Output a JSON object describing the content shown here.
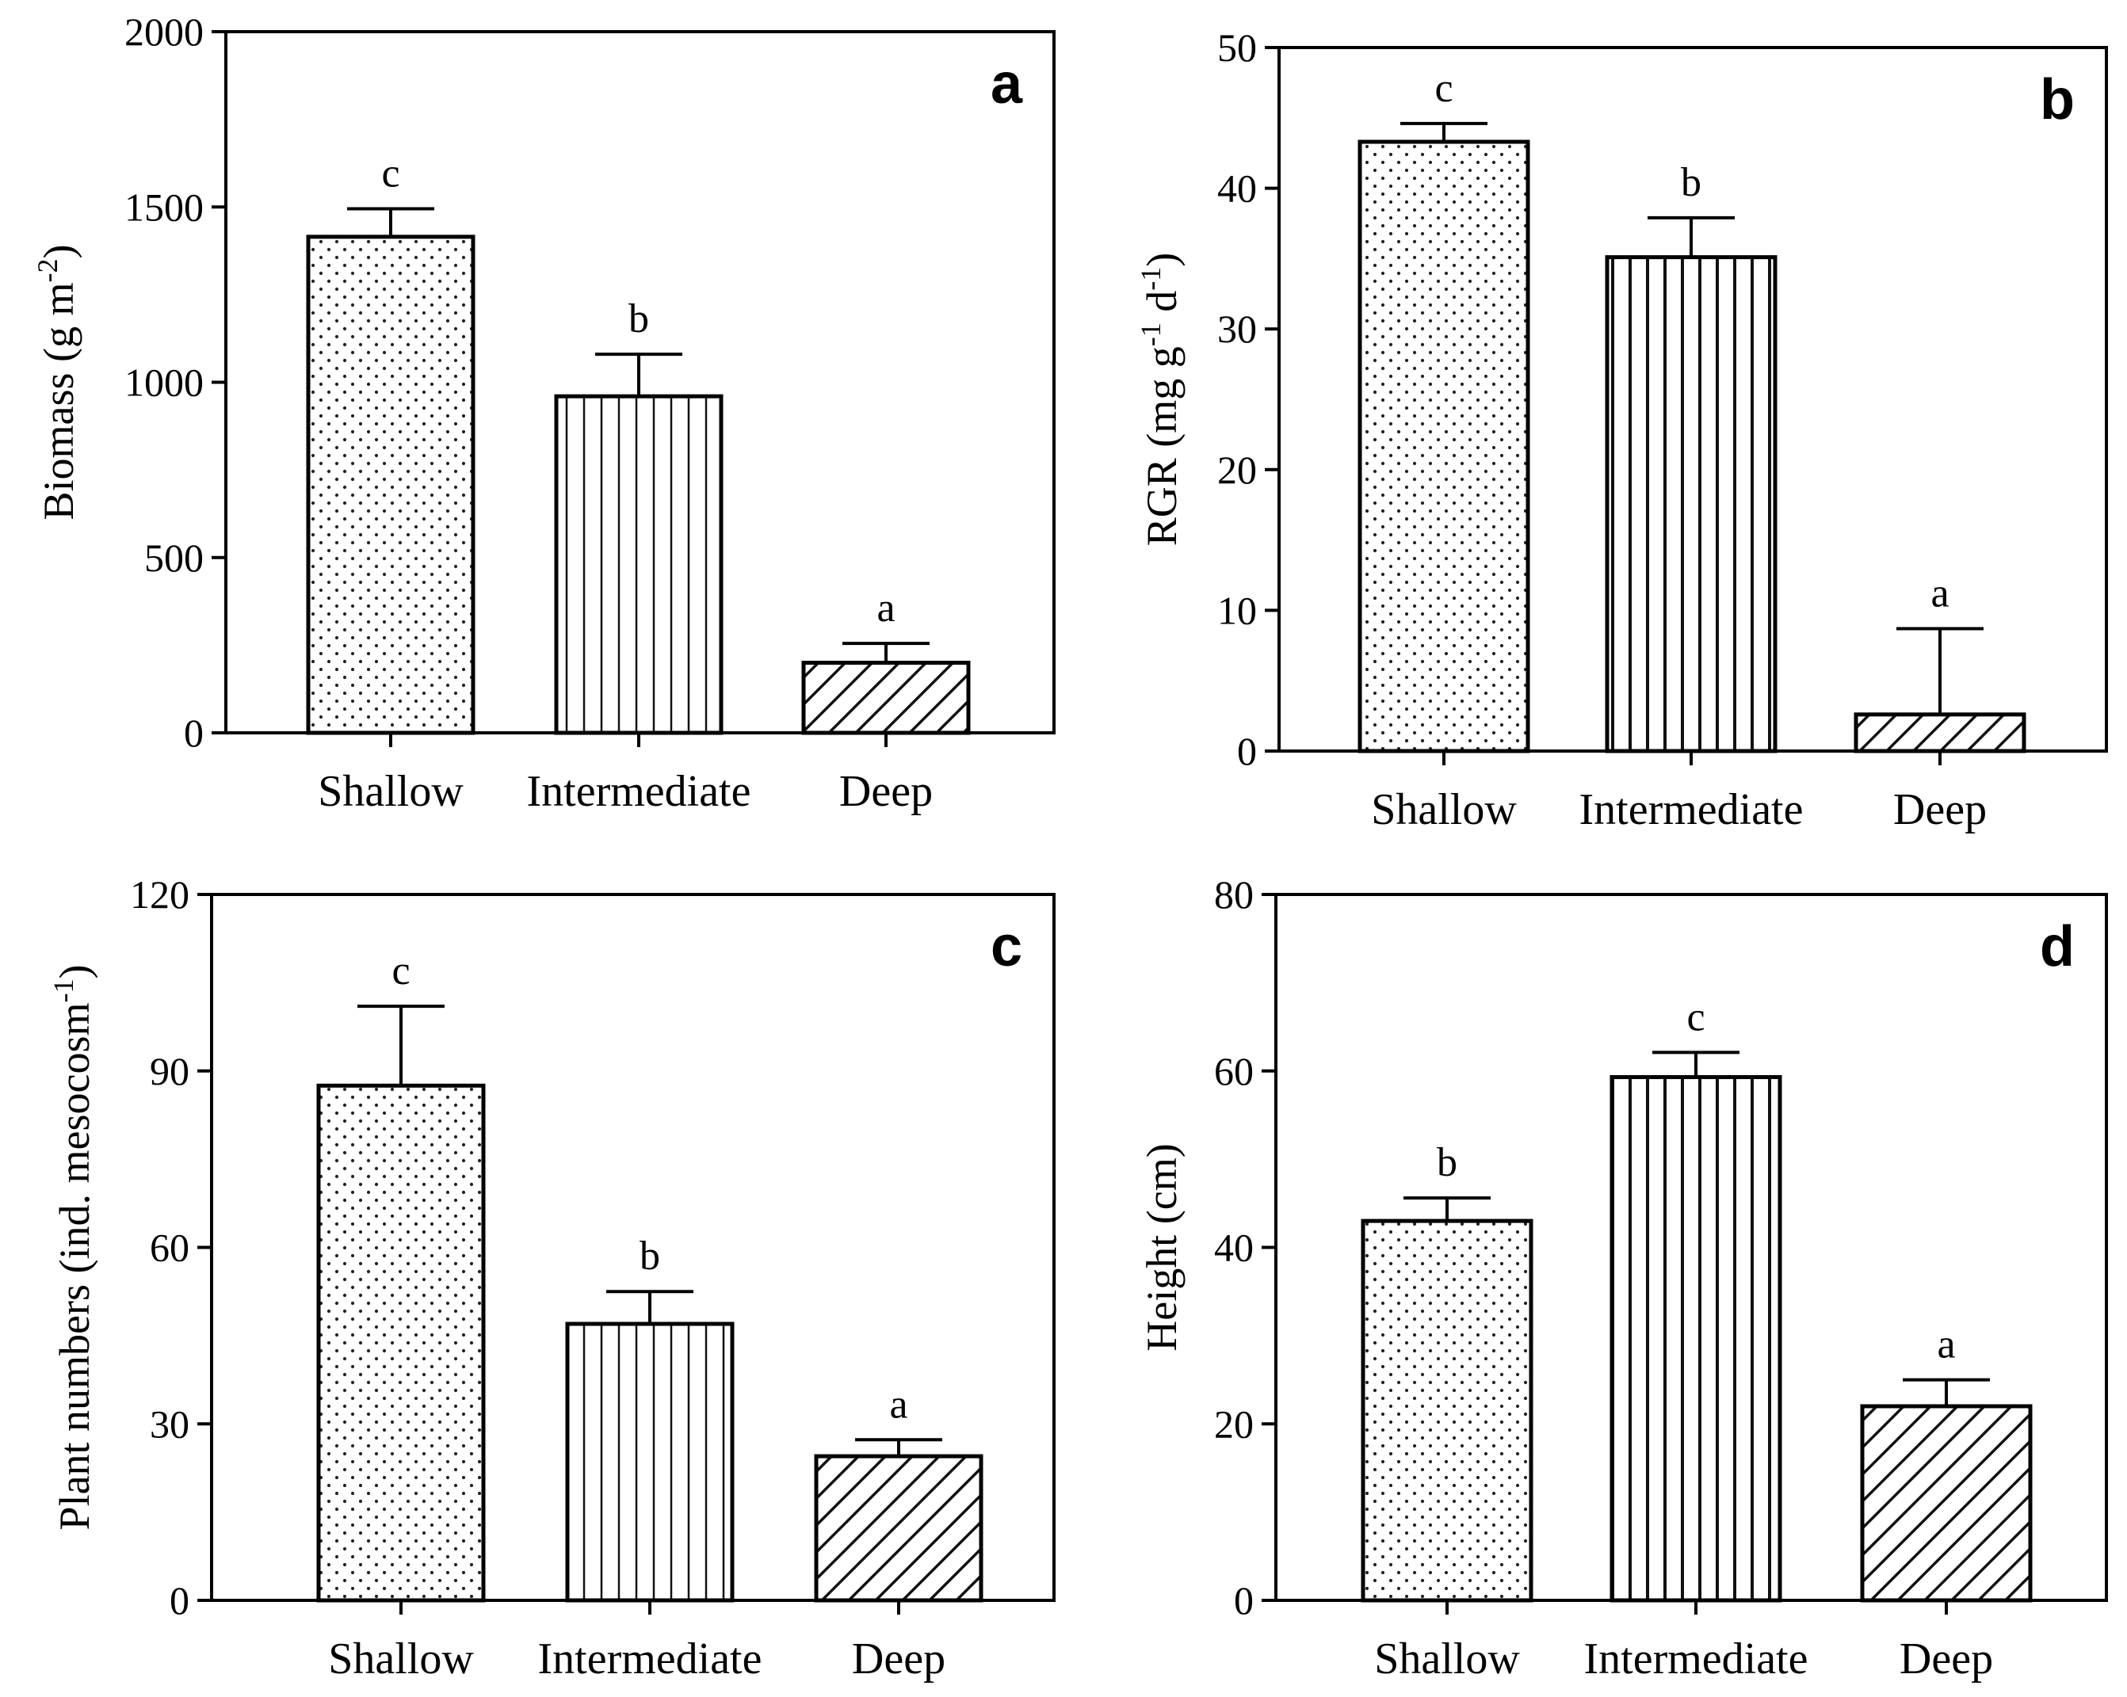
{
  "chart_data": [
    {
      "panel": "a",
      "type": "bar",
      "categories": [
        "Shallow",
        "Intermediate",
        "Deep"
      ],
      "values": [
        1415,
        960,
        200
      ],
      "errors": [
        80,
        120,
        55
      ],
      "significance": [
        "c",
        "b",
        "a"
      ],
      "patterns": [
        "dots",
        "vertical",
        "diagonal"
      ],
      "ylabel": "Biomass  (g m",
      "ylabel_sup": "-2",
      "ylabel_tail": ")",
      "ylim": [
        0,
        2000
      ],
      "yticks": [
        0,
        500,
        1000,
        1500,
        2000
      ]
    },
    {
      "panel": "b",
      "type": "bar",
      "categories": [
        "Shallow",
        "Intermediate",
        "Deep"
      ],
      "values": [
        43.3,
        35.1,
        2.6
      ],
      "errors": [
        1.3,
        2.8,
        6.1
      ],
      "significance": [
        "c",
        "b",
        "a"
      ],
      "patterns": [
        "dots",
        "vertical",
        "diagonal"
      ],
      "ylabel": "RGR  (mg  g",
      "ylabel_sup": "-1",
      "ylabel_mid": " d",
      "ylabel_sup2": "-1",
      "ylabel_tail": ")",
      "ylim": [
        0,
        50
      ],
      "yticks": [
        0,
        10,
        20,
        30,
        40,
        50
      ]
    },
    {
      "panel": "c",
      "type": "bar",
      "categories": [
        "Shallow",
        "Intermediate",
        "Deep"
      ],
      "values": [
        87.5,
        47,
        24.5
      ],
      "errors": [
        13.5,
        5.5,
        2.8
      ],
      "significance": [
        "c",
        "b",
        "a"
      ],
      "patterns": [
        "dots",
        "vertical",
        "diagonal"
      ],
      "ylabel": "Plant numbers (ind. mesocosm",
      "ylabel_sup": "-1",
      "ylabel_tail": ")",
      "ylim": [
        0,
        120
      ],
      "yticks": [
        0,
        30,
        60,
        90,
        120
      ]
    },
    {
      "panel": "d",
      "type": "bar",
      "categories": [
        "Shallow",
        "Intermediate",
        "Deep"
      ],
      "values": [
        43,
        59.3,
        22
      ],
      "errors": [
        2.6,
        2.8,
        3
      ],
      "significance": [
        "b",
        "c",
        "a"
      ],
      "patterns": [
        "dots",
        "vertical",
        "diagonal"
      ],
      "ylabel": "Height  (cm)",
      "ylim": [
        0,
        80
      ],
      "yticks": [
        0,
        20,
        40,
        60,
        80
      ]
    }
  ]
}
